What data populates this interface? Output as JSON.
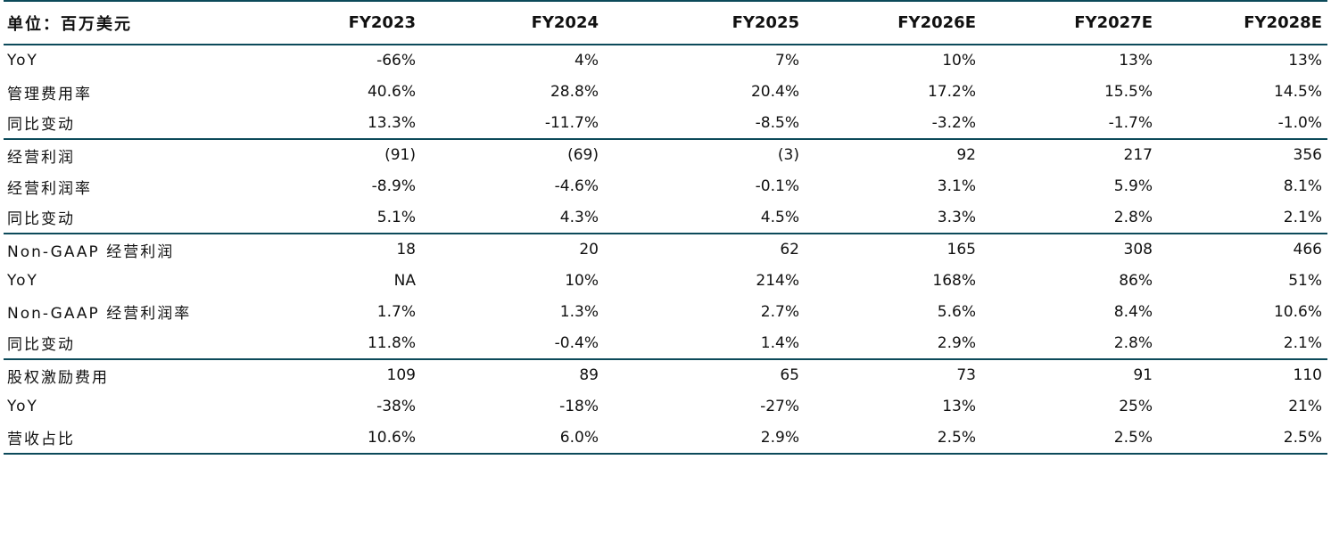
{
  "header": {
    "label": "单位：百万美元",
    "years": [
      "FY2023",
      "FY2024",
      "FY2025",
      "FY2026E",
      "FY2027E",
      "FY2028E"
    ]
  },
  "colors": {
    "rule": "#0c4a5a",
    "text": "#111111"
  },
  "rows": [
    {
      "label": "YoY",
      "values": [
        "-66%",
        "4%",
        "7%",
        "10%",
        "13%",
        "13%"
      ]
    },
    {
      "label": "管理费用率",
      "values": [
        "40.6%",
        "28.8%",
        "20.4%",
        "17.2%",
        "15.5%",
        "14.5%"
      ]
    },
    {
      "label": "同比变动",
      "values": [
        "13.3%",
        "-11.7%",
        "-8.5%",
        "-3.2%",
        "-1.7%",
        "-1.0%"
      ]
    },
    {
      "label": "经营利润",
      "values": [
        "(91)",
        "(69)",
        "(3)",
        "92",
        "217",
        "356"
      ]
    },
    {
      "label": "经营利润率",
      "values": [
        "-8.9%",
        "-4.6%",
        "-0.1%",
        "3.1%",
        "5.9%",
        "8.1%"
      ]
    },
    {
      "label": "同比变动",
      "values": [
        "5.1%",
        "4.3%",
        "4.5%",
        "3.3%",
        "2.8%",
        "2.1%"
      ]
    },
    {
      "label": "Non-GAAP 经营利润",
      "values": [
        "18",
        "20",
        "62",
        "165",
        "308",
        "466"
      ]
    },
    {
      "label": "YoY",
      "values": [
        "NA",
        "10%",
        "214%",
        "168%",
        "86%",
        "51%"
      ]
    },
    {
      "label": "Non-GAAP 经营利润率",
      "values": [
        "1.7%",
        "1.3%",
        "2.7%",
        "5.6%",
        "8.4%",
        "10.6%"
      ]
    },
    {
      "label": "同比变动",
      "values": [
        "11.8%",
        "-0.4%",
        "1.4%",
        "2.9%",
        "2.8%",
        "2.1%"
      ]
    },
    {
      "label": "股权激励费用",
      "values": [
        "109",
        "89",
        "65",
        "73",
        "91",
        "110"
      ]
    },
    {
      "label": "YoY",
      "values": [
        "-38%",
        "-18%",
        "-27%",
        "13%",
        "25%",
        "21%"
      ]
    },
    {
      "label": "营收占比",
      "values": [
        "10.6%",
        "6.0%",
        "2.9%",
        "2.5%",
        "2.5%",
        "2.5%"
      ]
    }
  ]
}
